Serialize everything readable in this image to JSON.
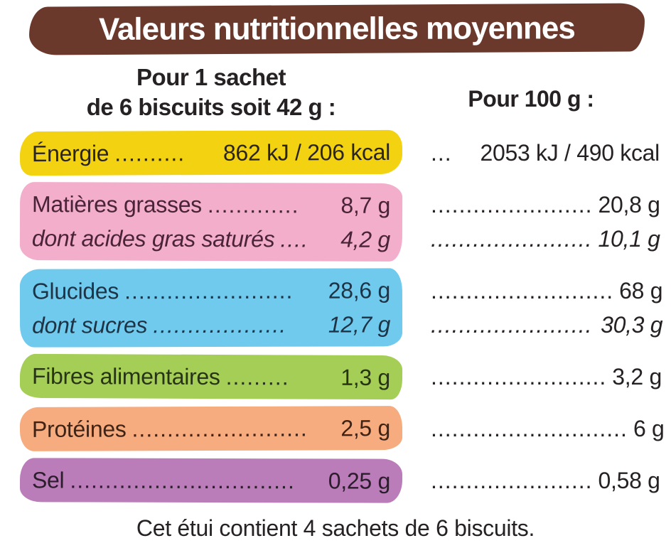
{
  "header": {
    "title": "Valeurs nutritionnelles moyennes",
    "banner_color": "#6A392C",
    "title_color": "#FFFFFF"
  },
  "columns": {
    "per_sachet_line1": "Pour 1 sachet",
    "per_sachet_line2": "de 6 biscuits soit 42 g :",
    "per_100g": "Pour 100 g :"
  },
  "rows": [
    {
      "id": "energy",
      "band_color": "#F2D211",
      "text_color": "#2B2522",
      "lines": [
        {
          "italic": false,
          "label": "Énergie",
          "dots": "..........",
          "value": "862 kJ / 206 kcal",
          "right_dots": "...",
          "right_value": "2053 kJ / 490 kcal"
        }
      ]
    },
    {
      "id": "fat",
      "band_color": "#F3AECB",
      "text_color": "#4A2338",
      "lines": [
        {
          "italic": false,
          "label": "Matières grasses",
          "dots": ".............",
          "value": "8,7 g",
          "right_dots": ".......................",
          "right_value": "20,8 g"
        },
        {
          "italic": true,
          "label": "dont acides gras saturés",
          "dots": "....",
          "value": "4,2 g",
          "right_dots": ".......................",
          "right_value": "10,1 g"
        }
      ]
    },
    {
      "id": "carbohydrates",
      "band_color": "#70CAEE",
      "text_color": "#1E3345",
      "lines": [
        {
          "italic": false,
          "label": "Glucides",
          "dots": "........................",
          "value": "28,6 g",
          "right_dots": "..........................",
          "right_value": "68 g"
        },
        {
          "italic": true,
          "label": "dont sucres",
          "dots": "...................",
          "value": "12,7 g",
          "right_dots": ".......................",
          "right_value": "30,3 g"
        }
      ]
    },
    {
      "id": "fiber",
      "band_color": "#A5CE57",
      "text_color": "#273415",
      "lines": [
        {
          "italic": false,
          "label": "Fibres alimentaires",
          "dots": ".........",
          "value": "1,3 g",
          "right_dots": ".........................",
          "right_value": "3,2 g"
        }
      ]
    },
    {
      "id": "protein",
      "band_color": "#F7AC80",
      "text_color": "#3F2315",
      "lines": [
        {
          "italic": false,
          "label": "Protéines",
          "dots": ".........................",
          "value": "2,5 g",
          "right_dots": "............................",
          "right_value": "6 g"
        }
      ]
    },
    {
      "id": "salt",
      "band_color": "#BB7CBA",
      "text_color": "#2B1D2B",
      "lines": [
        {
          "italic": false,
          "label": "Sel",
          "dots": "................................",
          "value": "0,25 g",
          "right_dots": ".......................",
          "right_value": "0,58 g"
        }
      ]
    }
  ],
  "footer": "Cet étui contient 4 sachets de 6 biscuits."
}
